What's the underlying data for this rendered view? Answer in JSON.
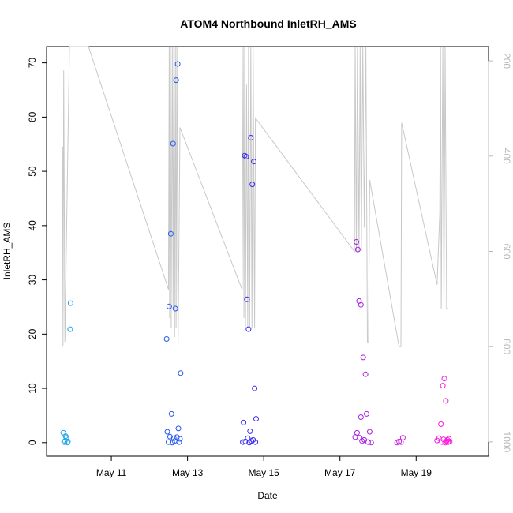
{
  "chart_data": {
    "type": "scatter",
    "title": "ATOM4 Northbound InletRH_AMS",
    "xlabel": "Date",
    "ylabel": "InletRH_AMS",
    "x_unit": "day of May",
    "xlim": [
      9.3,
      20.9
    ],
    "ylim": [
      -2.5,
      73
    ],
    "x_ticks": [
      11,
      13,
      15,
      17,
      19
    ],
    "x_tick_labels": [
      "May 11",
      "May 13",
      "May 15",
      "May 17",
      "May 19"
    ],
    "y_ticks": [
      0,
      10,
      20,
      30,
      40,
      50,
      60,
      70
    ],
    "y_tick_labels": [
      "0",
      "10",
      "20",
      "30",
      "40",
      "50",
      "60",
      "70"
    ],
    "y2_lim": [
      1030,
      170
    ],
    "y2_ticks": [
      200,
      400,
      600,
      800,
      1000
    ],
    "y2_tick_labels": [
      "200",
      "400",
      "600",
      "800",
      "1000"
    ],
    "colors": {
      "frame": "#000000",
      "line": "#c8c8c8",
      "right_axis": "#b8b8b8",
      "point_start": "#17a6e8",
      "point_mid": "#2b2bf0",
      "point_end": "#ff1ad9"
    },
    "points": [
      [
        9.74,
        1.8
      ],
      [
        9.76,
        0.1
      ],
      [
        9.78,
        0.3
      ],
      [
        9.8,
        1.2
      ],
      [
        9.82,
        0.9
      ],
      [
        9.84,
        0.0
      ],
      [
        9.86,
        0.2
      ],
      [
        9.92,
        20.9
      ],
      [
        9.93,
        25.7
      ],
      [
        12.45,
        19.1
      ],
      [
        12.47,
        2.0
      ],
      [
        12.5,
        0.1
      ],
      [
        12.52,
        25.1
      ],
      [
        12.54,
        1.1
      ],
      [
        12.56,
        38.5
      ],
      [
        12.58,
        5.3
      ],
      [
        12.6,
        0.0
      ],
      [
        12.62,
        55.1
      ],
      [
        12.64,
        0.8
      ],
      [
        12.66,
        0.3
      ],
      [
        12.68,
        24.7
      ],
      [
        12.7,
        66.8
      ],
      [
        12.72,
        1.0
      ],
      [
        12.74,
        69.8
      ],
      [
        12.76,
        2.6
      ],
      [
        12.78,
        0.1
      ],
      [
        12.8,
        0.7
      ],
      [
        12.82,
        12.8
      ],
      [
        14.45,
        0.1
      ],
      [
        14.47,
        3.7
      ],
      [
        14.5,
        52.9
      ],
      [
        14.52,
        0.2
      ],
      [
        14.54,
        52.7
      ],
      [
        14.56,
        26.4
      ],
      [
        14.58,
        0.8
      ],
      [
        14.6,
        20.9
      ],
      [
        14.62,
        0.0
      ],
      [
        14.64,
        2.1
      ],
      [
        14.66,
        56.2
      ],
      [
        14.68,
        0.3
      ],
      [
        14.7,
        47.6
      ],
      [
        14.72,
        0.5
      ],
      [
        14.74,
        51.8
      ],
      [
        14.76,
        10.0
      ],
      [
        14.78,
        0.1
      ],
      [
        14.8,
        4.4
      ],
      [
        17.4,
        1.0
      ],
      [
        17.43,
        37.0
      ],
      [
        17.45,
        1.8
      ],
      [
        17.47,
        35.6
      ],
      [
        17.5,
        26.1
      ],
      [
        17.52,
        0.9
      ],
      [
        17.55,
        25.4
      ],
      [
        17.58,
        0.3
      ],
      [
        17.61,
        15.7
      ],
      [
        17.64,
        0.5
      ],
      [
        17.67,
        12.6
      ],
      [
        17.7,
        5.3
      ],
      [
        17.74,
        0.1
      ],
      [
        17.78,
        2.0
      ],
      [
        17.82,
        0.0
      ],
      [
        17.55,
        4.7
      ],
      [
        18.5,
        0.0
      ],
      [
        18.55,
        0.2
      ],
      [
        18.6,
        0.1
      ],
      [
        18.65,
        0.9
      ],
      [
        19.55,
        0.4
      ],
      [
        19.6,
        0.8
      ],
      [
        19.65,
        3.4
      ],
      [
        19.68,
        0.1
      ],
      [
        19.7,
        10.5
      ],
      [
        19.72,
        0.6
      ],
      [
        19.74,
        11.8
      ],
      [
        19.76,
        0.0
      ],
      [
        19.78,
        7.7
      ],
      [
        19.8,
        0.3
      ],
      [
        19.82,
        0.5
      ],
      [
        19.84,
        0.1
      ],
      [
        19.86,
        0.7
      ],
      [
        19.88,
        0.2
      ]
    ],
    "secondary_line": [
      [
        9.72,
        380
      ],
      [
        9.73,
        800
      ],
      [
        9.75,
        220
      ],
      [
        9.78,
        790
      ],
      [
        9.85,
        420
      ],
      [
        9.9,
        170
      ],
      [
        10.4,
        170
      ],
      [
        12.5,
        680
      ],
      [
        12.52,
        170
      ],
      [
        12.53,
        740
      ],
      [
        12.55,
        170
      ],
      [
        12.57,
        760
      ],
      [
        12.6,
        170
      ],
      [
        12.62,
        720
      ],
      [
        12.64,
        170
      ],
      [
        12.66,
        780
      ],
      [
        12.68,
        170
      ],
      [
        12.7,
        760
      ],
      [
        12.72,
        170
      ],
      [
        12.75,
        800
      ],
      [
        12.8,
        340
      ],
      [
        14.43,
        680
      ],
      [
        14.46,
        170
      ],
      [
        14.48,
        740
      ],
      [
        14.5,
        170
      ],
      [
        14.52,
        760
      ],
      [
        14.55,
        250
      ],
      [
        14.58,
        760
      ],
      [
        14.6,
        170
      ],
      [
        14.63,
        760
      ],
      [
        14.66,
        170
      ],
      [
        14.69,
        760
      ],
      [
        14.72,
        170
      ],
      [
        14.76,
        760
      ],
      [
        14.78,
        320
      ],
      [
        17.38,
        600
      ],
      [
        17.4,
        170
      ],
      [
        17.43,
        600
      ],
      [
        17.46,
        170
      ],
      [
        17.5,
        600
      ],
      [
        17.53,
        170
      ],
      [
        17.56,
        600
      ],
      [
        17.6,
        170
      ],
      [
        17.64,
        550
      ],
      [
        17.68,
        170
      ],
      [
        17.72,
        790
      ],
      [
        17.75,
        790
      ],
      [
        17.78,
        450
      ],
      [
        18.55,
        800
      ],
      [
        18.6,
        800
      ],
      [
        18.62,
        330
      ],
      [
        19.55,
        670
      ],
      [
        19.62,
        520
      ],
      [
        19.64,
        170
      ],
      [
        19.66,
        720
      ],
      [
        19.7,
        170
      ],
      [
        19.73,
        720
      ],
      [
        19.76,
        170
      ],
      [
        19.8,
        720
      ],
      [
        19.85,
        720
      ]
    ]
  }
}
